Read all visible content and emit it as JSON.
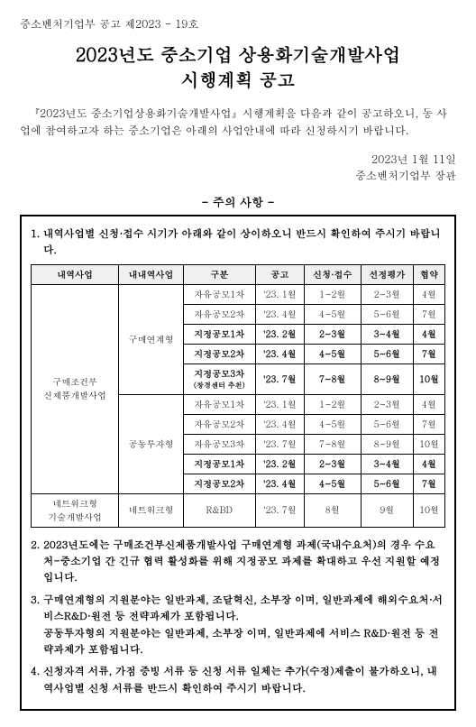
{
  "doc_number": "중소벤처기업부 공고 제2023 - 19호",
  "title_line1": "2023년도 중소기업 상용화기술개발사업",
  "title_line2": "시행계획 공고",
  "intro": "『2023년도 중소기업상용화기술개발사업』시행계획을 다음과 같이 공고하오니, 동 사업에 참여하고자 하는 중소기업은 아래의 사업안내에 따라 신청하시기 바랍니다.",
  "date": "2023년 1월 11일",
  "signer": "중소벤처기업부 장관",
  "notice_header": "- 주의 사항 -",
  "note1": "1. 내역사업별 신청·접수 시기가 아래와 같이 상이하오니 반드시 확인하여 주시기 바랍니다.",
  "table": {
    "headers": [
      "내역사업",
      "내내역사업",
      "구분",
      "공고",
      "신청·접수",
      "선정평가",
      "협약"
    ],
    "group1_label": "구매조건부\n신제품개발사업",
    "group1a_label": "구매연계형",
    "group1b_label": "공동투자형",
    "group2_label": "네트워크형\n기술개발사업",
    "group2a_label": "네트워크형",
    "rows": [
      {
        "c": [
          "자유공모1차",
          "'23. 1월",
          "1~2월",
          "2~3월",
          "4월"
        ],
        "bold": false
      },
      {
        "c": [
          "자유공모2차",
          "'23. 4월",
          "4~5월",
          "5~6월",
          "7월"
        ],
        "bold": false
      },
      {
        "c": [
          "지정공모1차",
          "'23. 2월",
          "2~3월",
          "3~4월",
          "4월"
        ],
        "bold": true
      },
      {
        "c": [
          "지정공모2차",
          "'23. 4월",
          "4~5월",
          "5~6월",
          "7월"
        ],
        "bold": true
      },
      {
        "c": [
          "지정공모3차",
          "'23. 7월",
          "7~8월",
          "8~9월",
          "10월"
        ],
        "bold": true,
        "sub": "(창경센터 추천)"
      },
      {
        "c": [
          "자유공모1차",
          "'23. 1월",
          "1~2월",
          "2~3월",
          "4월"
        ],
        "bold": false
      },
      {
        "c": [
          "자유공모2차",
          "'23. 4월",
          "4~5월",
          "5~6월",
          "7월"
        ],
        "bold": false
      },
      {
        "c": [
          "자유공모3차",
          "'23. 7월",
          "7~8월",
          "8~9월",
          "10월"
        ],
        "bold": false
      },
      {
        "c": [
          "지정공모1차",
          "'23. 2월",
          "2~3월",
          "3~4월",
          "4월"
        ],
        "bold": true
      },
      {
        "c": [
          "지정공모2차",
          "'23. 4월",
          "4~5월",
          "5~6월",
          "7월"
        ],
        "bold": true
      },
      {
        "c": [
          "R&BD",
          "'23. 7월",
          "8월",
          "9월",
          "10월"
        ],
        "bold": false
      }
    ]
  },
  "note2": "2. 2023년도에는 구매조건부신제품개발사업 구매연계형 과제(국내수요처)의 경우 수요처-중소기업 간 긴규 협력 활성화를 위해 지정공모 과제를 확대하고 우선 지원할 예정입니다.",
  "note3a": "3. 구매연계형의 지원분야는 일반과제, 조달혁신, 소부장 이며, 일반과제에 해외수요처·서비스R&D·원전 등 전략과제가 포함됩니다.",
  "note3b": "공동투자형의 지원분야는 일반과제, 소부장 이며, 일반과제에 서비스 R&D·원전 등 전략과제가 포함됩니다.",
  "note4": "4. 신청자격 서류, 가점 증빙 서류 등 신청 서류 일체는 추가(수정)제출이 불가하오니, 내역사업별 신청 서류를 반드시 확인하여 주시기 바랍니다."
}
